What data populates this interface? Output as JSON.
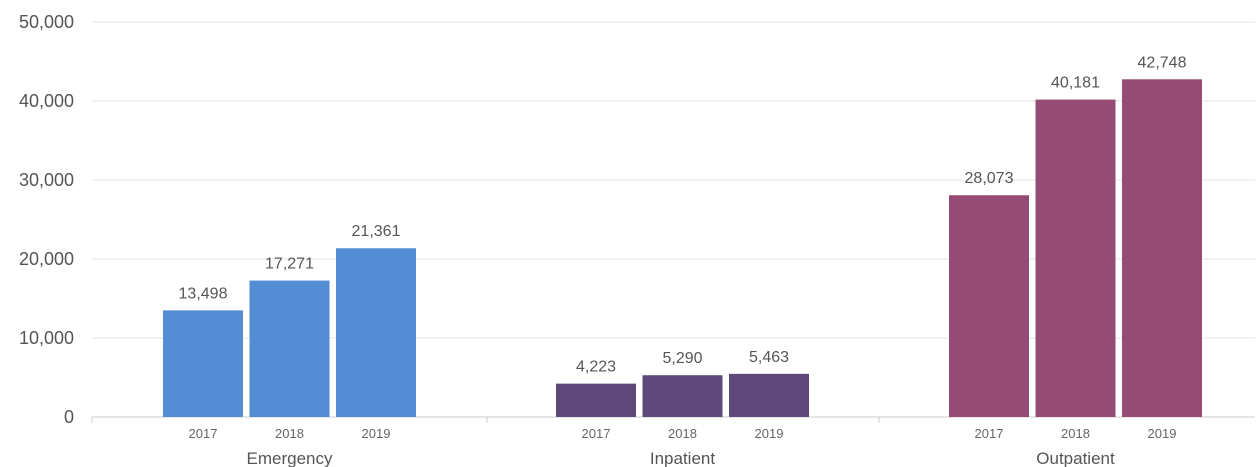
{
  "chart_data": {
    "type": "bar",
    "ylim": [
      0,
      50000
    ],
    "yticks": [
      "0",
      "10,000",
      "20,000",
      "30,000",
      "40,000",
      "50,000"
    ],
    "grid": true,
    "groups": [
      {
        "name": "Emergency",
        "color": "#548dd4",
        "bars": [
          {
            "year": "2017",
            "value": 13498,
            "label": "13,498"
          },
          {
            "year": "2018",
            "value": 17271,
            "label": "17,271"
          },
          {
            "year": "2019",
            "value": 21361,
            "label": "21,361"
          }
        ]
      },
      {
        "name": "Inpatient",
        "color": "#5f497a",
        "bars": [
          {
            "year": "2017",
            "value": 4223,
            "label": "4,223"
          },
          {
            "year": "2018",
            "value": 5290,
            "label": "5,290"
          },
          {
            "year": "2019",
            "value": 5463,
            "label": "5,463"
          }
        ]
      },
      {
        "name": "Outpatient",
        "color": "#944c74",
        "bars": [
          {
            "year": "2017",
            "value": 28073,
            "label": "28,073"
          },
          {
            "year": "2018",
            "value": 40181,
            "label": "40,181"
          },
          {
            "year": "2019",
            "value": 42748,
            "label": "42,748"
          }
        ]
      }
    ]
  }
}
